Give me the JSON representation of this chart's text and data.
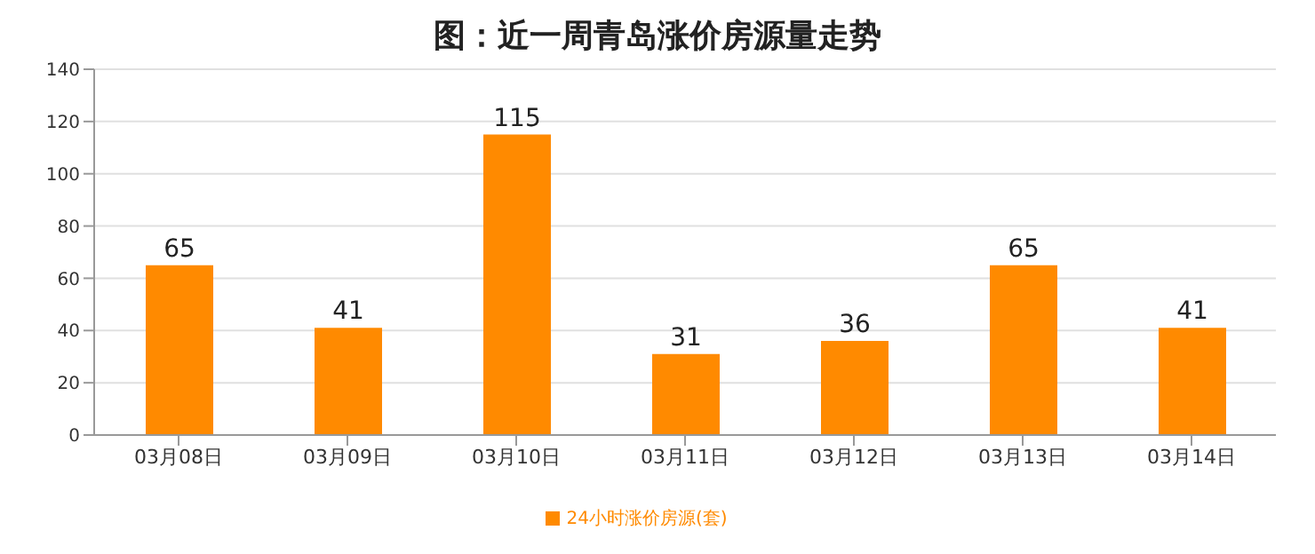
{
  "chart_data": {
    "type": "bar",
    "title": "图：近一周青岛涨价房源量走势",
    "categories": [
      "03月08日",
      "03月09日",
      "03月10日",
      "03月11日",
      "03月12日",
      "03月13日",
      "03月14日"
    ],
    "series": [
      {
        "name": "24小时涨价房源(套)",
        "color": "#ff8a00",
        "values": [
          65,
          41,
          115,
          31,
          36,
          65,
          41
        ]
      }
    ],
    "ylim": [
      0,
      140
    ],
    "yticks": [
      0,
      20,
      40,
      60,
      80,
      100,
      120,
      140
    ],
    "grid": "y",
    "legend": "bottom",
    "data_labels": true
  }
}
